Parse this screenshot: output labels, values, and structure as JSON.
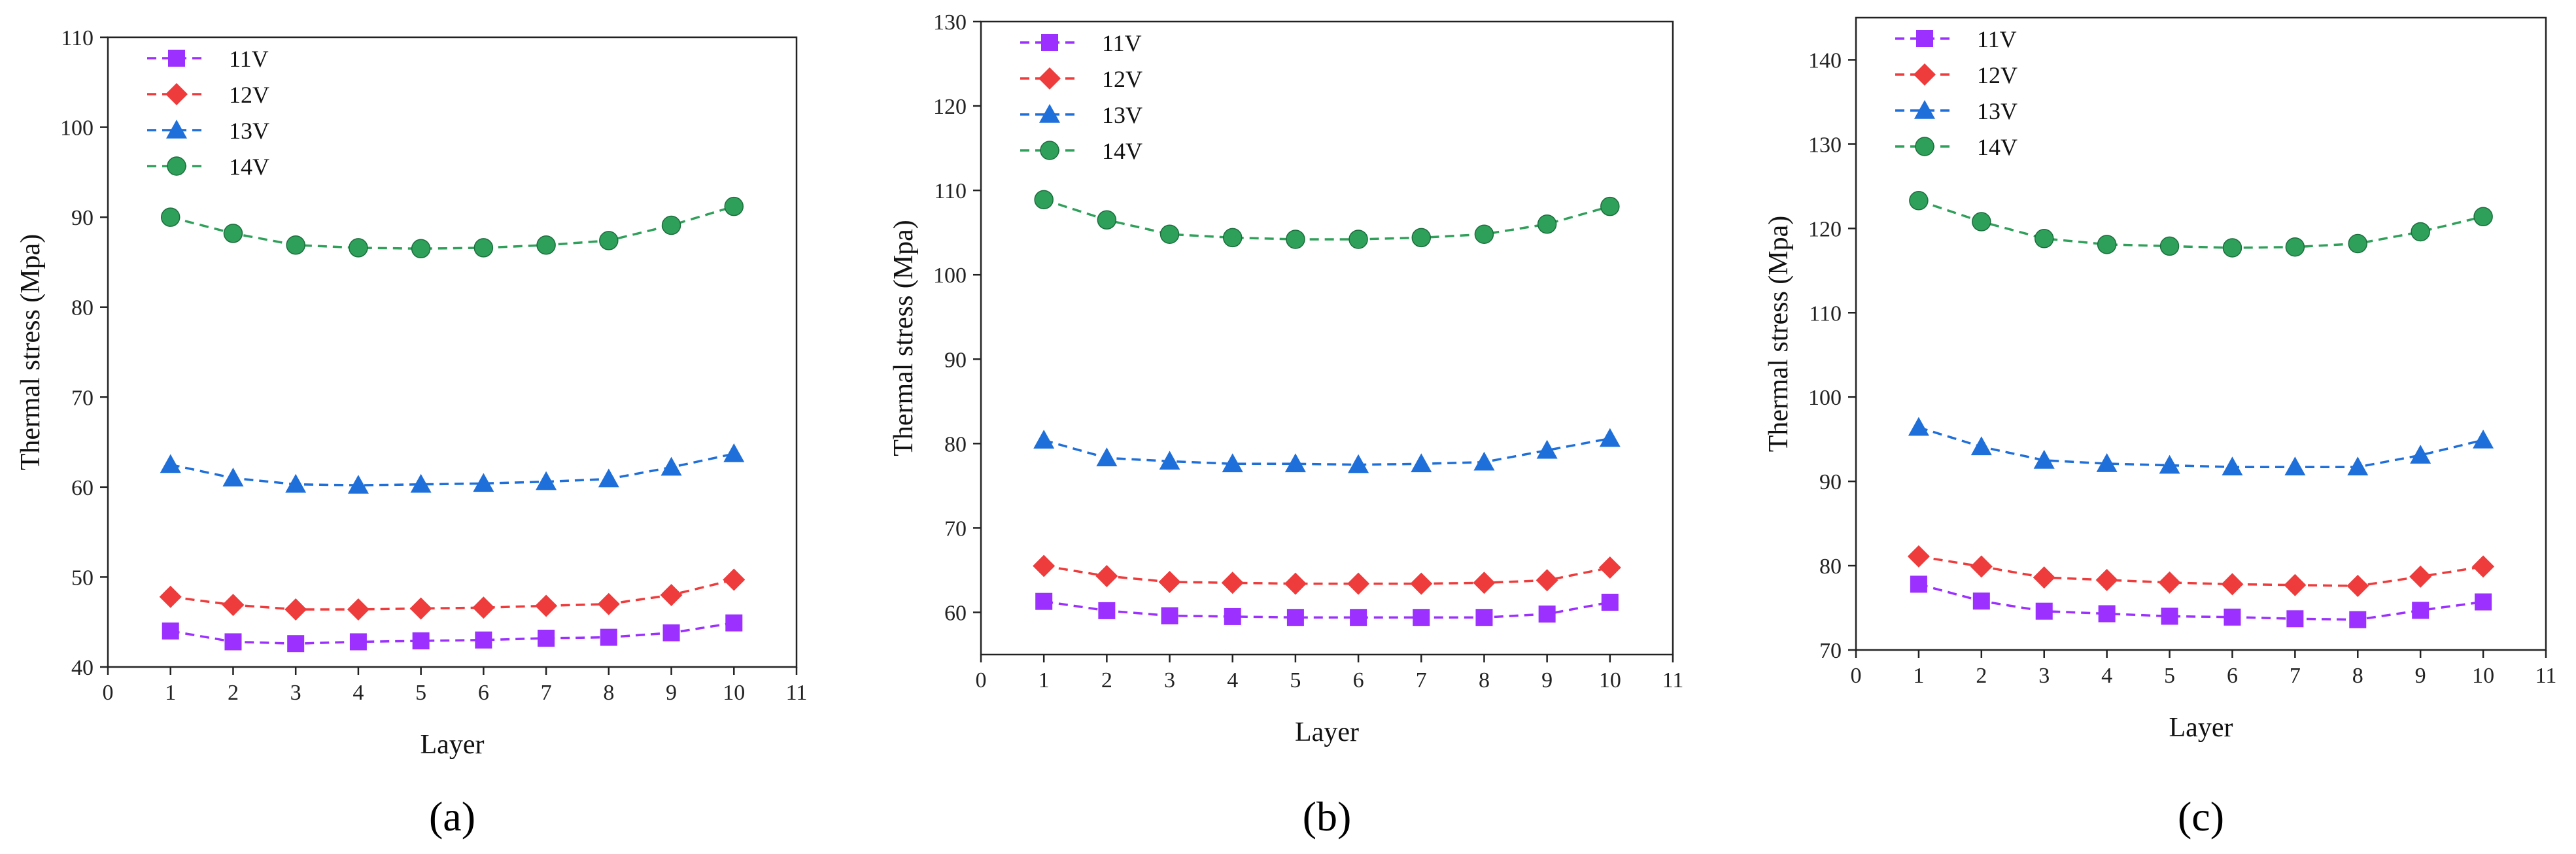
{
  "chart_data": [
    {
      "type": "line",
      "panel_label": "(a)",
      "xlabel": "Layer",
      "ylabel": "Thermal stress (Mpa)",
      "xlim": [
        0,
        11
      ],
      "ylim": [
        40,
        110
      ],
      "xticks": [
        0,
        1,
        2,
        3,
        4,
        5,
        6,
        7,
        8,
        9,
        10,
        11
      ],
      "yticks": [
        40,
        50,
        60,
        70,
        80,
        90,
        100,
        110
      ],
      "x": [
        1,
        2,
        3,
        4,
        5,
        6,
        7,
        8,
        9,
        10
      ],
      "legend_position": "top-left",
      "series": [
        {
          "name": "11V",
          "color": "#9b30ff",
          "marker": "square",
          "values": [
            44.0,
            42.8,
            42.6,
            42.8,
            42.9,
            43.0,
            43.2,
            43.3,
            43.8,
            44.9
          ]
        },
        {
          "name": "12V",
          "color": "#ee3b3b",
          "marker": "diamond",
          "values": [
            47.8,
            46.9,
            46.4,
            46.4,
            46.5,
            46.6,
            46.8,
            47.0,
            48.0,
            49.7
          ]
        },
        {
          "name": "13V",
          "color": "#1e6fd9",
          "marker": "triangle",
          "values": [
            62.5,
            61.0,
            60.3,
            60.2,
            60.3,
            60.4,
            60.6,
            60.9,
            62.2,
            63.7
          ]
        },
        {
          "name": "14V",
          "color": "#2fa05a",
          "marker": "circle",
          "values": [
            90.0,
            88.2,
            86.9,
            86.6,
            86.5,
            86.6,
            86.9,
            87.4,
            89.1,
            91.2
          ]
        }
      ]
    },
    {
      "type": "line",
      "panel_label": "(b)",
      "xlabel": "Layer",
      "ylabel": "Thermal stress (Mpa)",
      "xlim": [
        0,
        11
      ],
      "ylim": [
        55,
        130
      ],
      "xticks": [
        0,
        1,
        2,
        3,
        4,
        5,
        6,
        7,
        8,
        9,
        10,
        11
      ],
      "yticks": [
        60,
        70,
        80,
        90,
        100,
        110,
        120,
        130
      ],
      "x": [
        1,
        2,
        3,
        4,
        5,
        6,
        7,
        8,
        9,
        10
      ],
      "legend_position": "top-left",
      "series": [
        {
          "name": "11V",
          "color": "#9b30ff",
          "marker": "square",
          "values": [
            61.3,
            60.2,
            59.6,
            59.5,
            59.4,
            59.4,
            59.4,
            59.4,
            59.8,
            61.2
          ]
        },
        {
          "name": "12V",
          "color": "#ee3b3b",
          "marker": "diamond",
          "values": [
            65.5,
            64.3,
            63.6,
            63.5,
            63.4,
            63.4,
            63.4,
            63.5,
            63.8,
            65.3
          ]
        },
        {
          "name": "13V",
          "color": "#1e6fd9",
          "marker": "triangle",
          "values": [
            80.4,
            78.3,
            77.9,
            77.6,
            77.6,
            77.5,
            77.6,
            77.8,
            79.2,
            80.6
          ]
        },
        {
          "name": "14V",
          "color": "#2fa05a",
          "marker": "circle",
          "values": [
            108.9,
            106.5,
            104.8,
            104.4,
            104.2,
            104.2,
            104.4,
            104.8,
            106.0,
            108.1
          ]
        }
      ]
    },
    {
      "type": "line",
      "panel_label": "(c)",
      "xlabel": "Layer",
      "ylabel": "Thermal stress (Mpa)",
      "xlim": [
        0,
        11
      ],
      "ylim": [
        70,
        145
      ],
      "xticks": [
        0,
        1,
        2,
        3,
        4,
        5,
        6,
        7,
        8,
        9,
        10,
        11
      ],
      "yticks": [
        70,
        80,
        90,
        100,
        110,
        120,
        130,
        140
      ],
      "x": [
        1,
        2,
        3,
        4,
        5,
        6,
        7,
        8,
        9,
        10
      ],
      "legend_position": "top-left",
      "series": [
        {
          "name": "11V",
          "color": "#9b30ff",
          "marker": "square",
          "values": [
            77.8,
            75.8,
            74.6,
            74.3,
            74.0,
            73.9,
            73.7,
            73.6,
            74.7,
            75.7
          ]
        },
        {
          "name": "12V",
          "color": "#ee3b3b",
          "marker": "diamond",
          "values": [
            81.1,
            79.9,
            78.6,
            78.3,
            78.0,
            77.8,
            77.7,
            77.6,
            78.7,
            79.9
          ]
        },
        {
          "name": "13V",
          "color": "#1e6fd9",
          "marker": "triangle",
          "values": [
            96.4,
            94.1,
            92.5,
            92.1,
            91.9,
            91.7,
            91.7,
            91.7,
            93.1,
            94.9
          ]
        },
        {
          "name": "14V",
          "color": "#2fa05a",
          "marker": "circle",
          "values": [
            123.3,
            120.8,
            118.8,
            118.1,
            117.9,
            117.7,
            117.8,
            118.2,
            119.6,
            121.4
          ]
        }
      ]
    }
  ]
}
